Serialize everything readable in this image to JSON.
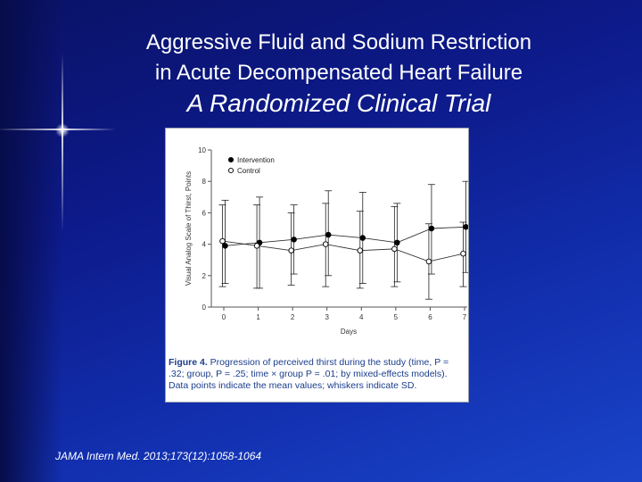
{
  "slide": {
    "title_line1": "Aggressive Fluid and Sodium Restriction",
    "title_line2": "in Acute Decompensated Heart Failure",
    "subtitle": "A Randomized Clinical Trial",
    "citation": "JAMA Intern Med. 2013;173(12):1058-1064",
    "background_color": "#0d1a8a"
  },
  "figure": {
    "caption_lead": "Figure 4.",
    "caption_text": " Progression of perceived thirst during the study (time, P = .32; group, P = .25; time × group P = .01; by mixed-effects models). Data points indicate the mean values; whiskers indicate SD."
  },
  "chart_data": {
    "type": "line",
    "title": "",
    "xlabel": "Days",
    "ylabel": "Visual Analog Scale of Thirst, Points",
    "x": [
      0,
      1,
      2,
      3,
      4,
      5,
      6,
      7
    ],
    "xlim": [
      0,
      7
    ],
    "ylim": [
      0,
      10
    ],
    "yticks": [
      0,
      2,
      4,
      6,
      8,
      10
    ],
    "grid": false,
    "legend": "top-left",
    "series": [
      {
        "name": "Intervention",
        "marker": "filled-circle",
        "color": "#000000",
        "values": [
          3.9,
          4.1,
          4.3,
          4.6,
          4.4,
          4.1,
          5.0,
          5.1
        ],
        "sd_low": [
          1.5,
          1.2,
          2.1,
          2.0,
          1.5,
          1.6,
          2.1,
          2.2
        ],
        "sd_high": [
          6.8,
          7.0,
          6.5,
          7.4,
          7.3,
          6.6,
          7.8,
          8.0
        ]
      },
      {
        "name": "Control",
        "marker": "open-circle",
        "color": "#000000",
        "values": [
          4.2,
          3.9,
          3.6,
          4.0,
          3.6,
          3.7,
          2.9,
          3.4
        ],
        "sd_low": [
          1.3,
          1.2,
          1.4,
          1.3,
          1.2,
          1.3,
          0.5,
          1.3
        ],
        "sd_high": [
          6.5,
          6.5,
          6.0,
          6.6,
          6.1,
          6.4,
          5.3,
          5.4
        ]
      }
    ]
  }
}
